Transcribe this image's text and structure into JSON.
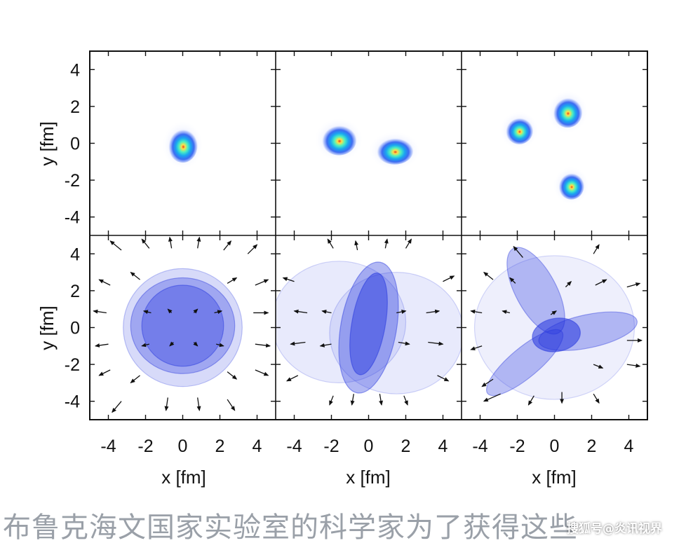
{
  "chart_data": {
    "type": "multi-panel",
    "rows": 2,
    "cols": 3,
    "xlabel": "x [fm]",
    "ylabel": "y [fm]",
    "xlim": [
      -5,
      5
    ],
    "ylim": [
      -5,
      5
    ],
    "xticks": [
      "-4",
      "-2",
      "0",
      "2",
      "4"
    ],
    "yticks": [
      "4",
      "2",
      "0",
      "-2",
      "-4"
    ],
    "xtick_values": [
      -4,
      -2,
      0,
      2,
      4
    ],
    "ytick_values": [
      4,
      2,
      0,
      -2,
      -4
    ],
    "colors": {
      "hotspot_core": "#e8401c",
      "hotspot_mid": "#ffe04a",
      "hotspot_edge": "#2a5cf0",
      "flow": "#2233dd",
      "arrow": "#111111"
    },
    "panels": [
      {
        "row": 0,
        "col": 0,
        "kind": "density",
        "blobs": [
          {
            "x": 0.0,
            "y": -0.1,
            "rx": 0.8,
            "ry": 0.95
          }
        ]
      },
      {
        "row": 0,
        "col": 1,
        "kind": "density",
        "blobs": [
          {
            "x": -1.6,
            "y": 0.2,
            "rx": 0.95,
            "ry": 0.85
          },
          {
            "x": 1.4,
            "y": -0.4,
            "rx": 1.0,
            "ry": 0.75
          }
        ]
      },
      {
        "row": 0,
        "col": 2,
        "kind": "density",
        "blobs": [
          {
            "x": -1.9,
            "y": 0.7,
            "rx": 0.75,
            "ry": 0.75
          },
          {
            "x": 0.7,
            "y": 1.7,
            "rx": 0.8,
            "ry": 0.85
          },
          {
            "x": 0.9,
            "y": -2.3,
            "rx": 0.7,
            "ry": 0.75
          }
        ]
      },
      {
        "row": 1,
        "col": 0,
        "kind": "flow",
        "shapes": [
          {
            "x": 0.0,
            "y": 0.0,
            "rx": 3.2,
            "ry": 3.2,
            "rot": 0,
            "alpha": 0.18
          },
          {
            "x": 0.0,
            "y": 0.1,
            "rx": 2.8,
            "ry": 2.6,
            "rot": 0,
            "alpha": 0.3
          },
          {
            "x": 0.0,
            "y": 0.1,
            "rx": 2.2,
            "ry": 2.2,
            "rot": 0,
            "alpha": 0.35
          }
        ],
        "arrows": [
          {
            "x": -3.3,
            "y": 4.2,
            "dx": -0.6,
            "dy": 0.5
          },
          {
            "x": -1.8,
            "y": 4.3,
            "dx": -0.4,
            "dy": 0.5
          },
          {
            "x": -0.6,
            "y": 4.3,
            "dx": -0.1,
            "dy": 0.6
          },
          {
            "x": 0.8,
            "y": 4.3,
            "dx": 0.1,
            "dy": 0.6
          },
          {
            "x": 2.2,
            "y": 4.2,
            "dx": 0.4,
            "dy": 0.5
          },
          {
            "x": 3.5,
            "y": 4.0,
            "dx": 0.5,
            "dy": 0.5
          },
          {
            "x": -3.9,
            "y": 2.3,
            "dx": -0.6,
            "dy": 0.3
          },
          {
            "x": -2.3,
            "y": 2.6,
            "dx": -0.5,
            "dy": 0.4
          },
          {
            "x": 2.4,
            "y": 2.4,
            "dx": 0.5,
            "dy": 0.3
          },
          {
            "x": 3.9,
            "y": 2.3,
            "dx": 0.7,
            "dy": 0.3
          },
          {
            "x": -4.1,
            "y": 0.8,
            "dx": -0.7,
            "dy": 0.1
          },
          {
            "x": -1.7,
            "y": 0.8,
            "dx": -0.4,
            "dy": 0.1
          },
          {
            "x": -0.6,
            "y": 0.8,
            "dx": -0.2,
            "dy": 0.2
          },
          {
            "x": 0.6,
            "y": 0.8,
            "dx": 0.2,
            "dy": 0.2
          },
          {
            "x": 1.7,
            "y": 0.8,
            "dx": 0.4,
            "dy": 0.1
          },
          {
            "x": 3.8,
            "y": 0.8,
            "dx": 0.8,
            "dy": 0.0
          },
          {
            "x": -4.0,
            "y": -0.9,
            "dx": -0.7,
            "dy": -0.1
          },
          {
            "x": -1.8,
            "y": -0.9,
            "dx": -0.4,
            "dy": -0.1
          },
          {
            "x": -0.5,
            "y": -0.8,
            "dx": -0.2,
            "dy": -0.2
          },
          {
            "x": 0.6,
            "y": -0.8,
            "dx": 0.2,
            "dy": -0.2
          },
          {
            "x": 1.8,
            "y": -0.9,
            "dx": 0.4,
            "dy": -0.1
          },
          {
            "x": 3.9,
            "y": -0.9,
            "dx": 0.8,
            "dy": -0.1
          },
          {
            "x": -3.9,
            "y": -2.3,
            "dx": -0.6,
            "dy": -0.3
          },
          {
            "x": -2.3,
            "y": -2.6,
            "dx": -0.5,
            "dy": -0.4
          },
          {
            "x": 2.4,
            "y": -2.4,
            "dx": 0.5,
            "dy": -0.4
          },
          {
            "x": 3.9,
            "y": -2.3,
            "dx": 0.7,
            "dy": -0.3
          },
          {
            "x": -3.3,
            "y": -4.0,
            "dx": -0.5,
            "dy": -0.6
          },
          {
            "x": -0.8,
            "y": -3.8,
            "dx": -0.1,
            "dy": -0.7
          },
          {
            "x": 0.8,
            "y": -3.8,
            "dx": 0.1,
            "dy": -0.7
          },
          {
            "x": 2.4,
            "y": -3.9,
            "dx": 0.4,
            "dy": -0.6
          }
        ]
      },
      {
        "row": 1,
        "col": 1,
        "kind": "flow",
        "shapes": [
          {
            "x": -1.6,
            "y": 0.3,
            "rx": 3.6,
            "ry": 3.3,
            "rot": 0,
            "alpha": 0.1
          },
          {
            "x": 1.5,
            "y": -0.3,
            "rx": 3.6,
            "ry": 3.3,
            "rot": 0,
            "alpha": 0.1
          },
          {
            "x": 0.0,
            "y": 0.0,
            "rx": 1.5,
            "ry": 3.6,
            "rot": 10,
            "alpha": 0.35
          },
          {
            "x": 0.0,
            "y": 0.2,
            "rx": 0.9,
            "ry": 2.8,
            "rot": 10,
            "alpha": 0.45
          }
        ],
        "arrows": [
          {
            "x": -1.9,
            "y": 4.3,
            "dx": -0.3,
            "dy": 0.5
          },
          {
            "x": -0.6,
            "y": 4.2,
            "dx": -0.1,
            "dy": 0.5
          },
          {
            "x": 0.9,
            "y": 4.3,
            "dx": 0.1,
            "dy": 0.5
          },
          {
            "x": 2.0,
            "y": 4.3,
            "dx": 0.3,
            "dy": 0.5
          },
          {
            "x": -4.0,
            "y": 2.5,
            "dx": -0.6,
            "dy": 0.2
          },
          {
            "x": 4.0,
            "y": 2.5,
            "dx": 0.6,
            "dy": 0.3
          },
          {
            "x": -3.3,
            "y": 0.8,
            "dx": -0.7,
            "dy": 0.1
          },
          {
            "x": -2.0,
            "y": 0.8,
            "dx": -0.5,
            "dy": 0.1
          },
          {
            "x": 1.5,
            "y": 0.8,
            "dx": 0.5,
            "dy": 0.1
          },
          {
            "x": 3.1,
            "y": 0.8,
            "dx": 0.7,
            "dy": 0.1
          },
          {
            "x": -3.4,
            "y": -0.8,
            "dx": -0.8,
            "dy": -0.1
          },
          {
            "x": -2.0,
            "y": -0.9,
            "dx": -0.6,
            "dy": -0.1
          },
          {
            "x": 1.6,
            "y": -0.8,
            "dx": 0.6,
            "dy": -0.1
          },
          {
            "x": 3.2,
            "y": -0.8,
            "dx": 0.8,
            "dy": -0.1
          },
          {
            "x": -3.8,
            "y": -2.6,
            "dx": -0.6,
            "dy": -0.3
          },
          {
            "x": 3.7,
            "y": -2.6,
            "dx": 0.6,
            "dy": -0.3
          },
          {
            "x": -1.9,
            "y": -3.7,
            "dx": -0.2,
            "dy": -0.5
          },
          {
            "x": -0.8,
            "y": -3.6,
            "dx": -0.1,
            "dy": -0.6
          },
          {
            "x": 0.6,
            "y": -3.6,
            "dx": 0.1,
            "dy": -0.6
          },
          {
            "x": 1.9,
            "y": -3.7,
            "dx": 0.2,
            "dy": -0.5
          }
        ]
      },
      {
        "row": 1,
        "col": 2,
        "kind": "flow",
        "shapes": [
          {
            "x": 0.0,
            "y": 0.0,
            "rx": 4.3,
            "ry": 3.9,
            "rot": 0,
            "alpha": 0.08
          },
          {
            "x": -1.0,
            "y": 2.0,
            "rx": 1.1,
            "ry": 2.6,
            "rot": -28,
            "alpha": 0.3
          },
          {
            "x": 1.8,
            "y": -0.2,
            "rx": 2.7,
            "ry": 0.9,
            "rot": -12,
            "alpha": 0.3
          },
          {
            "x": -1.6,
            "y": -1.9,
            "rx": 2.6,
            "ry": 0.8,
            "rot": -40,
            "alpha": 0.3
          },
          {
            "x": 0.1,
            "y": -0.4,
            "rx": 1.3,
            "ry": 0.9,
            "rot": -10,
            "alpha": 0.55
          }
        ],
        "arrows": [
          {
            "x": -1.7,
            "y": 3.8,
            "dx": -0.5,
            "dy": 0.6
          },
          {
            "x": 2.1,
            "y": 4.0,
            "dx": 0.3,
            "dy": 0.5
          },
          {
            "x": -3.3,
            "y": 2.6,
            "dx": -0.5,
            "dy": 0.4
          },
          {
            "x": -2.1,
            "y": 2.4,
            "dx": -0.3,
            "dy": 0.3
          },
          {
            "x": 0.6,
            "y": 2.2,
            "dx": 0.3,
            "dy": 0.3
          },
          {
            "x": 2.2,
            "y": 2.3,
            "dx": 0.6,
            "dy": 0.3
          },
          {
            "x": 3.9,
            "y": 2.2,
            "dx": 0.7,
            "dy": 0.2
          },
          {
            "x": -3.9,
            "y": 0.8,
            "dx": -0.6,
            "dy": 0.1
          },
          {
            "x": -2.4,
            "y": 0.8,
            "dx": -0.4,
            "dy": 0.1
          },
          {
            "x": -0.2,
            "y": 0.7,
            "dx": 0.3,
            "dy": 0.2
          },
          {
            "x": 3.9,
            "y": -0.7,
            "dx": 0.8,
            "dy": 0.0
          },
          {
            "x": -3.9,
            "y": -1.0,
            "dx": -0.6,
            "dy": -0.2
          },
          {
            "x": 2.1,
            "y": -2.0,
            "dx": 0.5,
            "dy": -0.2
          },
          {
            "x": 3.9,
            "y": -2.0,
            "dx": 0.7,
            "dy": -0.1
          },
          {
            "x": -3.3,
            "y": -2.8,
            "dx": -0.6,
            "dy": -0.4
          },
          {
            "x": -2.9,
            "y": -3.6,
            "dx": -0.9,
            "dy": -0.4
          },
          {
            "x": -1.1,
            "y": -3.7,
            "dx": -0.3,
            "dy": -0.5
          },
          {
            "x": 0.4,
            "y": -3.5,
            "dx": 0.0,
            "dy": -0.6
          },
          {
            "x": 2.1,
            "y": -3.6,
            "dx": 0.3,
            "dy": -0.5
          }
        ]
      }
    ]
  },
  "caption": "布鲁克海文国家实验室的科学家为了获得这些",
  "watermark": "搜狐号@炎讯视界"
}
